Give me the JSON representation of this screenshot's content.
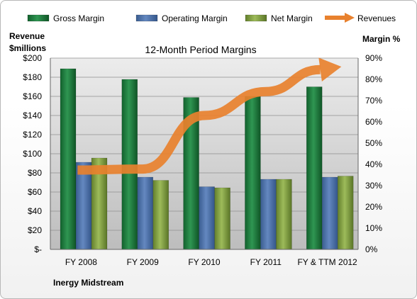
{
  "chart_data": {
    "type": "bar",
    "title": "12-Month Period Margins",
    "categories": [
      "FY 2008",
      "FY 2009",
      "FY 2010",
      "FY 2011",
      "FY & TTM 2012"
    ],
    "series": [
      {
        "name": "Gross Margin",
        "axis": "right",
        "values": [
          85,
          80,
          71.5,
          72,
          76.5
        ],
        "color": "#1e7a3e"
      },
      {
        "name": "Operating Margin",
        "axis": "right",
        "values": [
          41,
          34,
          29.5,
          33,
          34
        ],
        "color": "#4f72a8"
      },
      {
        "name": "Net Margin",
        "axis": "right",
        "values": [
          43,
          32.5,
          29,
          33,
          34.5
        ],
        "color": "#7e9b3f"
      },
      {
        "name": "Revenues",
        "axis": "left",
        "type": "line-arrow",
        "values": [
          83,
          84,
          140,
          165,
          188
        ],
        "color": "#e8812e"
      }
    ],
    "left_axis": {
      "label_line1": "Revenue",
      "label_line2": "$millions",
      "ylim": [
        0,
        200
      ],
      "ticks": [
        "$-",
        "$20",
        "$40",
        "$60",
        "$80",
        "$100",
        "$120",
        "$140",
        "$160",
        "$180",
        "$200"
      ]
    },
    "right_axis": {
      "label": "Margin %",
      "ylim": [
        0,
        90
      ],
      "ticks": [
        "0%",
        "10%",
        "20%",
        "30%",
        "40%",
        "50%",
        "60%",
        "70%",
        "80%",
        "90%"
      ]
    },
    "grid": true,
    "legend_position": "top"
  },
  "footer": {
    "company": "Inergy Midstream"
  }
}
